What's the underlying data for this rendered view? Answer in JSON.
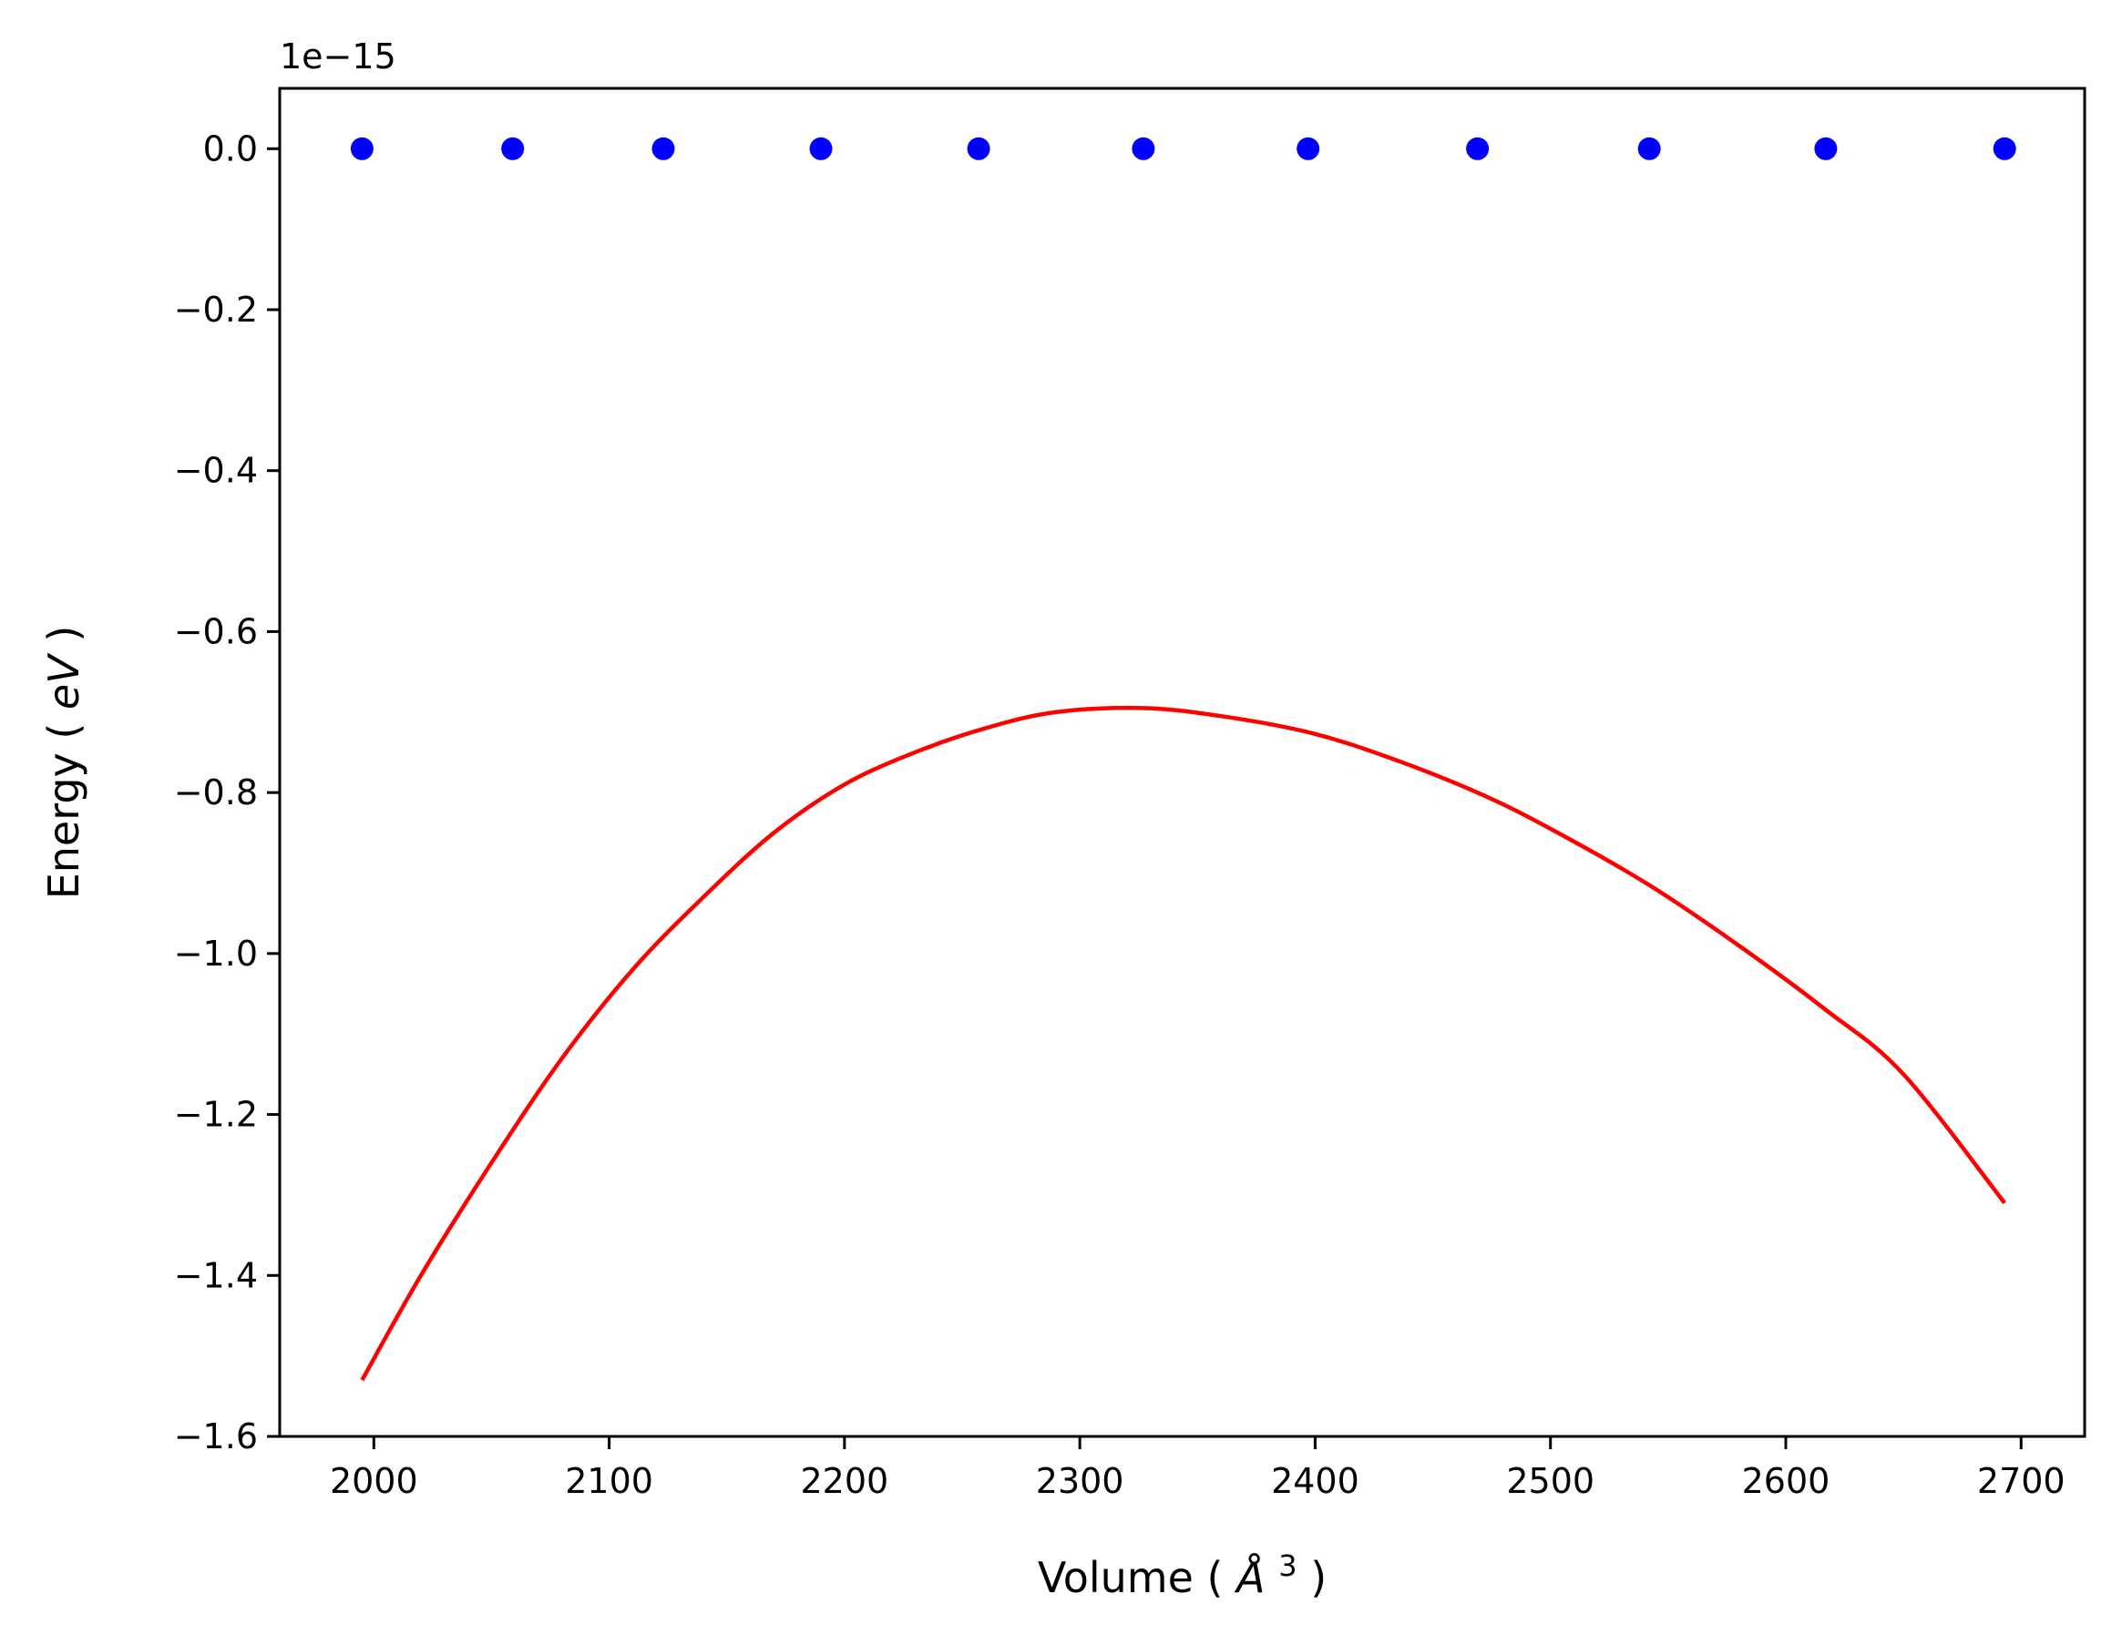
{
  "chart_data": {
    "type": "scatter",
    "xlabel": "Volume",
    "xlabel_unit": "(Å³)",
    "xlabel_unit_parts": {
      "open": "(",
      "symbol": "Å",
      "exponent": "3",
      "close": ")"
    },
    "ylabel": "Energy",
    "ylabel_unit_parts": {
      "open": "(",
      "symbol": "eV",
      "close": ")"
    },
    "y_offset_label": "1e−15",
    "xlim": [
      1960,
      2727
    ],
    "ylim": [
      -1.6,
      0.075
    ],
    "xticks": [
      2000,
      2100,
      2200,
      2300,
      2400,
      2500,
      2600,
      2700
    ],
    "yticks": [
      0.0,
      -0.2,
      -0.4,
      -0.6,
      -0.8,
      -1.0,
      -1.2,
      -1.4,
      -1.6
    ],
    "ytick_labels": [
      "0.0",
      "−0.2",
      "−0.4",
      "−0.6",
      "−0.8",
      "−1.0",
      "−1.2",
      "−1.4",
      "−1.6"
    ],
    "grid": false,
    "series": [
      {
        "kind": "scatter",
        "color": "#0000ff",
        "x": [
          1995,
          2059,
          2123,
          2190,
          2257,
          2327,
          2397,
          2469,
          2542,
          2617,
          2693
        ],
        "y": [
          0,
          0,
          0,
          0,
          0,
          0,
          0,
          0,
          0,
          0,
          0
        ]
      },
      {
        "kind": "line",
        "color": "#ff0000",
        "x": [
          1995,
          2020,
          2050,
          2080,
          2110,
          2140,
          2170,
          2200,
          2230,
          2260,
          2290,
          2327,
          2360,
          2397,
          2430,
          2469,
          2500,
          2542,
          2580,
          2617,
          2650,
          2693
        ],
        "y": [
          -1.53,
          -1.4,
          -1.26,
          -1.13,
          -1.02,
          -0.93,
          -0.85,
          -0.79,
          -0.75,
          -0.72,
          -0.7,
          -0.695,
          -0.705,
          -0.725,
          -0.755,
          -0.8,
          -0.845,
          -0.915,
          -0.99,
          -1.07,
          -1.15,
          -1.31
        ]
      }
    ]
  }
}
